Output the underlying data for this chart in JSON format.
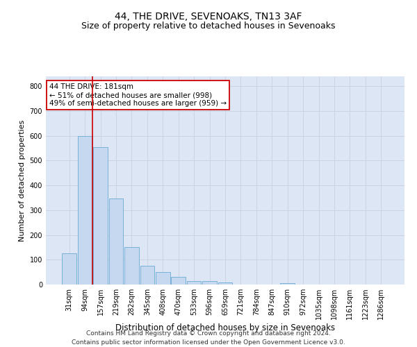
{
  "title": "44, THE DRIVE, SEVENOAKS, TN13 3AF",
  "subtitle": "Size of property relative to detached houses in Sevenoaks",
  "xlabel": "Distribution of detached houses by size in Sevenoaks",
  "ylabel": "Number of detached properties",
  "categories": [
    "31sqm",
    "94sqm",
    "157sqm",
    "219sqm",
    "282sqm",
    "345sqm",
    "408sqm",
    "470sqm",
    "533sqm",
    "596sqm",
    "659sqm",
    "721sqm",
    "784sqm",
    "847sqm",
    "910sqm",
    "972sqm",
    "1035sqm",
    "1098sqm",
    "1161sqm",
    "1223sqm",
    "1286sqm"
  ],
  "bar_values": [
    125,
    600,
    555,
    347,
    150,
    76,
    51,
    30,
    14,
    13,
    8,
    0,
    0,
    0,
    7,
    0,
    0,
    0,
    0,
    0,
    0
  ],
  "bar_color": "#c5d8f0",
  "bar_edgecolor": "#6aaad4",
  "bar_linewidth": 0.6,
  "vline_color": "#cc0000",
  "vline_linewidth": 1.2,
  "vline_xindex": 1.5,
  "annotation_text": "44 THE DRIVE: 181sqm\n← 51% of detached houses are smaller (998)\n49% of semi-detached houses are larger (959) →",
  "annotation_box_facecolor": "#ffffff",
  "annotation_box_edgecolor": "#cc0000",
  "annotation_fontsize": 7.5,
  "ylim": [
    0,
    840
  ],
  "yticks": [
    0,
    100,
    200,
    300,
    400,
    500,
    600,
    700,
    800
  ],
  "grid_color": "#c8d0dc",
  "bg_color": "#dce6f5",
  "footer_line1": "Contains HM Land Registry data © Crown copyright and database right 2024.",
  "footer_line2": "Contains public sector information licensed under the Open Government Licence v3.0.",
  "title_fontsize": 10,
  "subtitle_fontsize": 9,
  "xlabel_fontsize": 8.5,
  "ylabel_fontsize": 8,
  "tick_fontsize": 7,
  "footer_fontsize": 6.5
}
